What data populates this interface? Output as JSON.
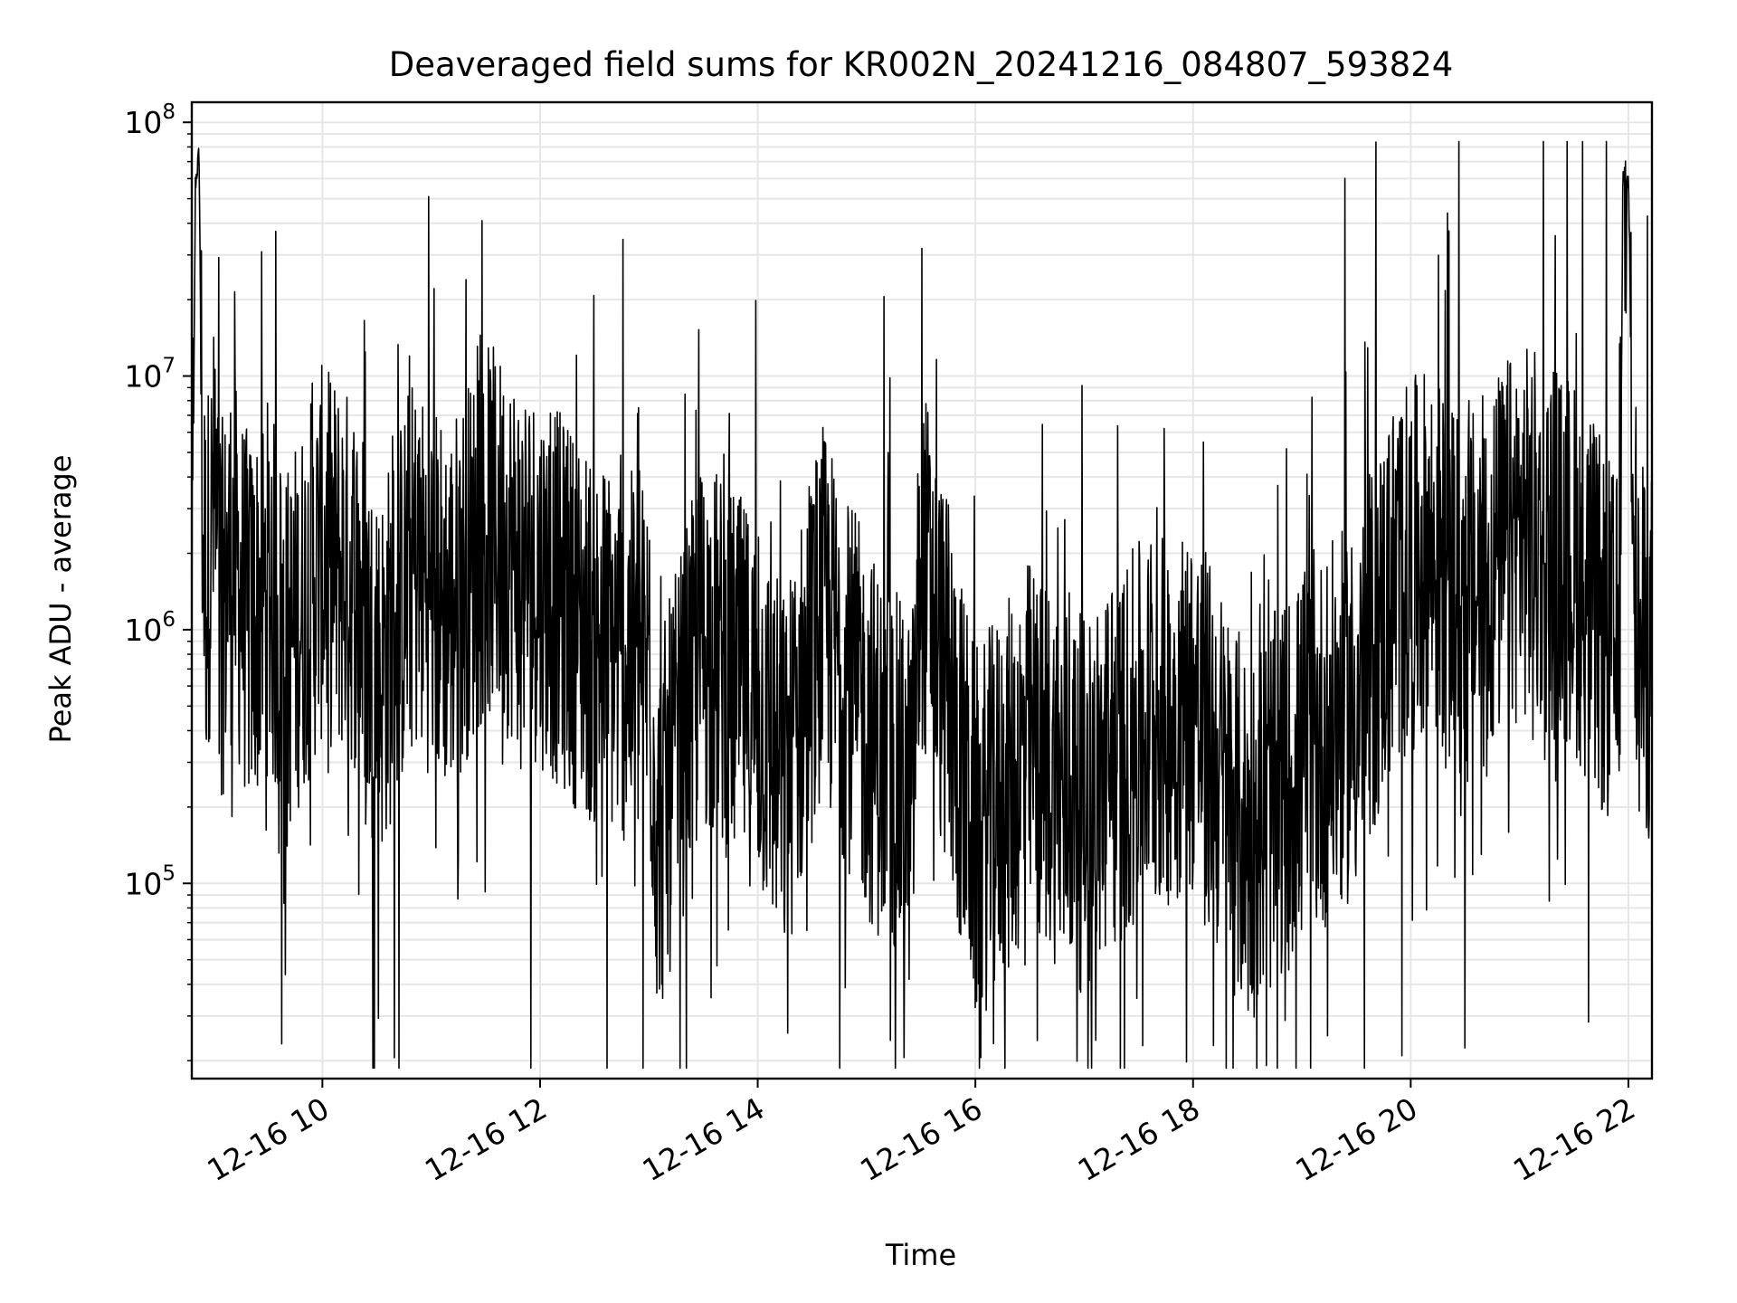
{
  "chart_data": {
    "type": "line",
    "title": "Deaveraged field sums for KR002N_20241216_084807_593824",
    "xlabel": "Time",
    "ylabel": "Peak ADU - average",
    "yscale": "log",
    "ylim": [
      17000,
      120000000
    ],
    "xlim": [
      "2024-12-16 08:48",
      "2024-12-16 22:13"
    ],
    "grid": true,
    "line_color": "#000000",
    "x_tick_labels": [
      "12-16 10",
      "12-16 12",
      "12-16 14",
      "12-16 16",
      "12-16 18",
      "12-16 20",
      "12-16 22"
    ],
    "x_tick_times": [
      "2024-12-16 10:00",
      "2024-12-16 12:00",
      "2024-12-16 14:00",
      "2024-12-16 16:00",
      "2024-12-16 18:00",
      "2024-12-16 20:00",
      "2024-12-16 22:00"
    ],
    "y_ticks": [
      {
        "value": 100000,
        "base": "10",
        "exp": "5"
      },
      {
        "value": 1000000,
        "base": "10",
        "exp": "6"
      },
      {
        "value": 10000000,
        "base": "10",
        "exp": "7"
      },
      {
        "value": 100000000,
        "base": "10",
        "exp": "8"
      }
    ],
    "series": [
      {
        "x": [
          "2024-12-16 08:48",
          "2024-12-16 08:50",
          "2024-12-16 08:52",
          "2024-12-16 08:54",
          "2024-12-16 08:56",
          "2024-12-16 09:00",
          "2024-12-16 09:05",
          "2024-12-16 09:10",
          "2024-12-16 09:20",
          "2024-12-16 09:30",
          "2024-12-16 09:40",
          "2024-12-16 10:00",
          "2024-12-16 10:20",
          "2024-12-16 10:30",
          "2024-12-16 10:50",
          "2024-12-16 11:10",
          "2024-12-16 11:30",
          "2024-12-16 12:00",
          "2024-12-16 12:30",
          "2024-12-16 13:00",
          "2024-12-16 13:05",
          "2024-12-16 13:30",
          "2024-12-16 14:00",
          "2024-12-16 14:15",
          "2024-12-16 14:35",
          "2024-12-16 15:00",
          "2024-12-16 15:25",
          "2024-12-16 15:30",
          "2024-12-16 16:00",
          "2024-12-16 16:20",
          "2024-12-16 16:30",
          "2024-12-16 17:00",
          "2024-12-16 17:30",
          "2024-12-16 18:00",
          "2024-12-16 18:30",
          "2024-12-16 19:00",
          "2024-12-16 19:30",
          "2024-12-16 19:50",
          "2024-12-16 20:10",
          "2024-12-16 20:30",
          "2024-12-16 21:00",
          "2024-12-16 21:30",
          "2024-12-16 21:55",
          "2024-12-16 21:57",
          "2024-12-16 22:00",
          "2024-12-16 22:05",
          "2024-12-16 22:13"
        ],
        "y": [
          700000,
          60000000,
          80000000,
          2500000,
          1500000,
          3000000,
          1200000,
          2000000,
          1000000,
          1500000,
          800000,
          2000000,
          1500000,
          600000,
          1800000,
          1200000,
          2500000,
          1600000,
          900000,
          700000,
          150000,
          900000,
          500000,
          250000,
          1200000,
          400000,
          200000,
          2000000,
          150000,
          250000,
          350000,
          200000,
          400000,
          500000,
          150000,
          300000,
          500000,
          1500000,
          2000000,
          1200000,
          2500000,
          1800000,
          700000,
          65000000,
          60000000,
          800000,
          800000
        ]
      }
    ]
  }
}
